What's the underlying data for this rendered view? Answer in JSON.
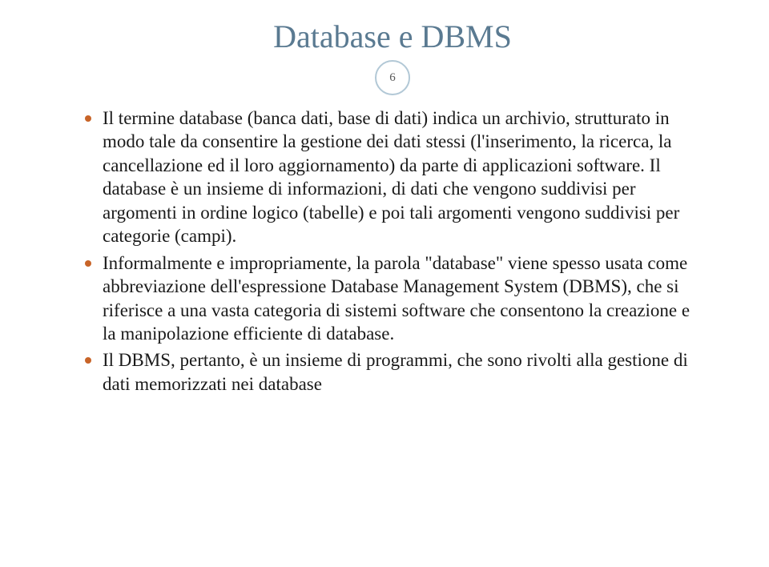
{
  "title": "Database e DBMS",
  "page_number": "6",
  "colors": {
    "title_color": "#5a7a91",
    "bullet_color": "#c86428",
    "body_color": "#1a1a1a",
    "blue_text": "#2954a0",
    "badge_border": "#b2c8d6",
    "background": "#ffffff"
  },
  "typography": {
    "title_fontsize": 40,
    "body_fontsize": 23,
    "font_family": "Georgia"
  },
  "bullets": [
    {
      "color": "body",
      "text": "Il termine database (banca dati, base di dati)  indica un archivio, strutturato in modo tale da consentire la gestione dei dati stessi (l'inserimento, la ricerca, la cancellazione ed il loro aggiornamento) da parte di applicazioni software. Il database è un insieme di informazioni, di dati che vengono suddivisi per argomenti in ordine logico (tabelle) e poi tali argomenti vengono suddivisi per categorie (campi)."
    },
    {
      "color": "blue",
      "text": "Informalmente e impropriamente, la parola \"database\" viene spesso usata come abbreviazione dell'espressione Database Management System (DBMS), che si riferisce a una vasta categoria di sistemi software che consentono la creazione e la manipolazione efficiente di database."
    },
    {
      "color": "body",
      "text": "Il DBMS, pertanto, è un insieme di programmi, che sono rivolti alla gestione di dati memorizzati nei database"
    }
  ]
}
